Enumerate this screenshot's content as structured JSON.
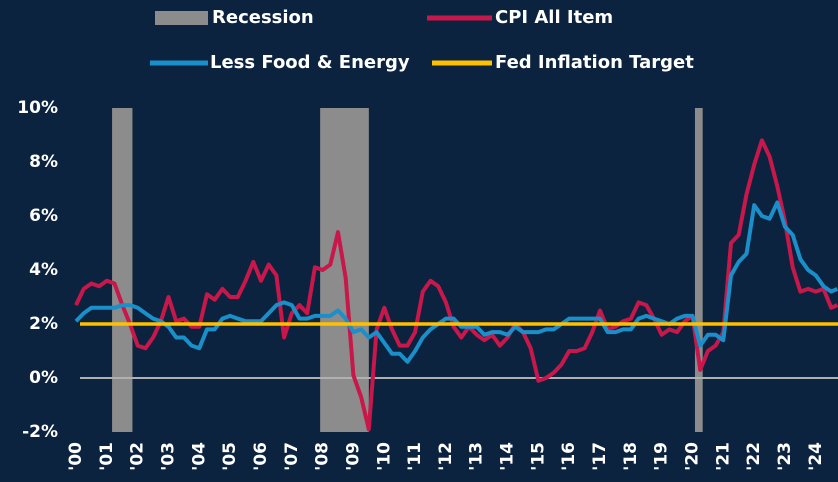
{
  "chart_data": {
    "type": "line",
    "x": [
      2000,
      2000.25,
      2000.5,
      2000.75,
      2001,
      2001.25,
      2001.5,
      2001.75,
      2002,
      2002.25,
      2002.5,
      2002.75,
      2003,
      2003.25,
      2003.5,
      2003.75,
      2004,
      2004.25,
      2004.5,
      2004.75,
      2005,
      2005.25,
      2005.5,
      2005.75,
      2006,
      2006.25,
      2006.5,
      2006.75,
      2007,
      2007.25,
      2007.5,
      2007.75,
      2008,
      2008.25,
      2008.5,
      2008.75,
      2009,
      2009.25,
      2009.5,
      2009.75,
      2010,
      2010.25,
      2010.5,
      2010.75,
      2011,
      2011.25,
      2011.5,
      2011.75,
      2012,
      2012.25,
      2012.5,
      2012.75,
      2013,
      2013.25,
      2013.5,
      2013.75,
      2014,
      2014.25,
      2014.5,
      2014.75,
      2015,
      2015.25,
      2015.5,
      2015.75,
      2016,
      2016.25,
      2016.5,
      2016.75,
      2017,
      2017.25,
      2017.5,
      2017.75,
      2018,
      2018.25,
      2018.5,
      2018.75,
      2019,
      2019.25,
      2019.5,
      2019.75,
      2020,
      2020.25,
      2020.5,
      2020.75,
      2021,
      2021.25,
      2021.5,
      2021.75,
      2022,
      2022.25,
      2022.5,
      2022.75,
      2023,
      2023.25,
      2023.5,
      2023.75,
      2024,
      2024.25,
      2024.5,
      2024.7
    ],
    "series": [
      {
        "name": "CPI All Item",
        "color": "#c8174a",
        "values": [
          2.7,
          3.3,
          3.5,
          3.4,
          3.6,
          3.5,
          2.7,
          2.0,
          1.2,
          1.1,
          1.5,
          2.1,
          3.0,
          2.1,
          2.2,
          1.9,
          1.9,
          3.1,
          2.9,
          3.3,
          3.0,
          3.0,
          3.6,
          4.3,
          3.6,
          4.2,
          3.8,
          1.5,
          2.4,
          2.7,
          2.4,
          4.1,
          4.0,
          4.2,
          5.4,
          3.7,
          0.1,
          -0.7,
          -1.9,
          1.8,
          2.6,
          1.8,
          1.2,
          1.2,
          1.7,
          3.2,
          3.6,
          3.4,
          2.8,
          1.9,
          1.5,
          1.9,
          1.6,
          1.4,
          1.6,
          1.2,
          1.5,
          2.0,
          1.7,
          1.1,
          -0.1,
          0.0,
          0.2,
          0.5,
          1.0,
          1.0,
          1.1,
          1.7,
          2.5,
          1.8,
          1.9,
          2.1,
          2.2,
          2.8,
          2.7,
          2.2,
          1.6,
          1.8,
          1.7,
          2.1,
          2.3,
          0.3,
          1.0,
          1.2,
          1.7,
          5.0,
          5.3,
          6.8,
          7.9,
          8.8,
          8.2,
          7.1,
          5.8,
          4.1,
          3.2,
          3.3,
          3.2,
          3.3,
          2.6,
          2.7
        ]
      },
      {
        "name": "Less Food & Energy",
        "color": "#1a8fc9",
        "values": [
          2.1,
          2.4,
          2.6,
          2.6,
          2.6,
          2.6,
          2.7,
          2.7,
          2.6,
          2.4,
          2.2,
          2.1,
          1.9,
          1.5,
          1.5,
          1.2,
          1.1,
          1.8,
          1.8,
          2.2,
          2.3,
          2.2,
          2.1,
          2.1,
          2.1,
          2.4,
          2.7,
          2.8,
          2.7,
          2.2,
          2.2,
          2.3,
          2.3,
          2.3,
          2.5,
          2.2,
          1.7,
          1.8,
          1.5,
          1.7,
          1.3,
          0.9,
          0.9,
          0.6,
          1.0,
          1.5,
          1.8,
          2.0,
          2.2,
          2.2,
          1.9,
          1.9,
          1.9,
          1.6,
          1.7,
          1.7,
          1.6,
          1.9,
          1.7,
          1.7,
          1.7,
          1.8,
          1.8,
          2.0,
          2.2,
          2.2,
          2.2,
          2.2,
          2.2,
          1.7,
          1.7,
          1.8,
          1.8,
          2.2,
          2.3,
          2.2,
          2.1,
          2.0,
          2.2,
          2.3,
          2.3,
          1.2,
          1.6,
          1.6,
          1.4,
          3.8,
          4.3,
          4.6,
          6.4,
          6.0,
          5.9,
          6.5,
          5.6,
          5.3,
          4.4,
          4.0,
          3.8,
          3.4,
          3.2,
          3.3
        ]
      }
    ],
    "reference_line": {
      "name": "Fed Inflation Target",
      "color": "#ffc000",
      "value": 2
    },
    "shading": {
      "name": "Recession",
      "color": "#8c8c8c",
      "spans": [
        [
          2001.17,
          2001.83
        ],
        [
          2007.92,
          2009.5
        ],
        [
          2020.08,
          2020.33
        ]
      ]
    },
    "xlim": [
      1999.74,
      2024.72
    ],
    "ylim": [
      -2,
      10
    ],
    "yticks": [
      {
        "value": -2,
        "label": "-2%"
      },
      {
        "value": 0,
        "label": "0%"
      },
      {
        "value": 2,
        "label": "2%"
      },
      {
        "value": 4,
        "label": "4%"
      },
      {
        "value": 6,
        "label": "6%"
      },
      {
        "value": 8,
        "label": "8%"
      },
      {
        "value": 10,
        "label": "10%"
      }
    ],
    "xticks": [
      {
        "value": 2000,
        "label": "'00"
      },
      {
        "value": 2001,
        "label": "'01"
      },
      {
        "value": 2002,
        "label": "'02"
      },
      {
        "value": 2003,
        "label": "'03"
      },
      {
        "value": 2004,
        "label": "'04"
      },
      {
        "value": 2005,
        "label": "'05"
      },
      {
        "value": 2006,
        "label": "'06"
      },
      {
        "value": 2007,
        "label": "'07"
      },
      {
        "value": 2008,
        "label": "'08"
      },
      {
        "value": 2009,
        "label": "'09"
      },
      {
        "value": 2010,
        "label": "'10"
      },
      {
        "value": 2011,
        "label": "'11"
      },
      {
        "value": 2012,
        "label": "'12"
      },
      {
        "value": 2013,
        "label": "'13"
      },
      {
        "value": 2014,
        "label": "'14"
      },
      {
        "value": 2015,
        "label": "'15"
      },
      {
        "value": 2016,
        "label": "'16"
      },
      {
        "value": 2017,
        "label": "'17"
      },
      {
        "value": 2018,
        "label": "'18"
      },
      {
        "value": 2019,
        "label": "'19"
      },
      {
        "value": 2020,
        "label": "'20"
      },
      {
        "value": 2021,
        "label": "'21"
      },
      {
        "value": 2022,
        "label": "'22"
      },
      {
        "value": 2023,
        "label": "'23"
      },
      {
        "value": 2024,
        "label": "'24"
      }
    ]
  }
}
